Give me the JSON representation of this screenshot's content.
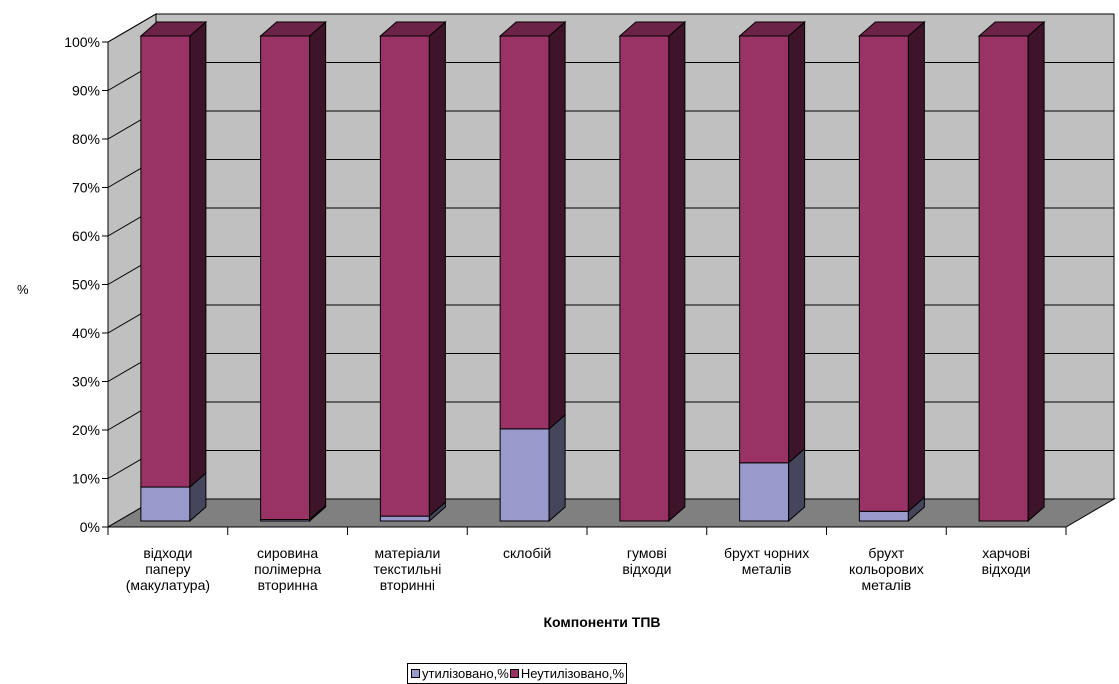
{
  "chart_data": {
    "type": "bar",
    "stacked": true,
    "percent_stacked": true,
    "three_d": true,
    "ylabel": "%",
    "xlabel": "Компоненти ТПВ",
    "ylim": [
      0,
      100
    ],
    "yticks": [
      "0%",
      "10%",
      "20%",
      "30%",
      "40%",
      "50%",
      "60%",
      "70%",
      "80%",
      "90%",
      "100%"
    ],
    "categories": [
      "відходи паперу (макулатура)",
      "сировина полімерна вторинна",
      "матеріали текстильні вторинні",
      "склобій",
      "гумові відходи",
      "брухт чорних металів",
      "брухт кольорових металів",
      "харчові відходи"
    ],
    "category_lines": [
      [
        "відходи",
        "паперу",
        "(макулатура)"
      ],
      [
        "сировина",
        "полімерна",
        "вторинна"
      ],
      [
        "матеріали",
        "текстильні",
        "вторинні"
      ],
      [
        "склобій"
      ],
      [
        "гумові",
        "відходи"
      ],
      [
        "брухт чорних",
        "металів"
      ],
      [
        "брухт",
        "кольорових",
        "металів"
      ],
      [
        "харчові",
        "відходи"
      ]
    ],
    "series": [
      {
        "name": "утилізовано,%",
        "color": "#9999cc",
        "values": [
          7,
          0.3,
          1,
          19,
          0,
          12,
          2,
          0
        ]
      },
      {
        "name": "Неутилізовано,%",
        "color": "#993366",
        "values": [
          93,
          99.7,
          99,
          81,
          100,
          88,
          98,
          100
        ]
      }
    ],
    "grid": true,
    "legend_position": "bottom"
  }
}
